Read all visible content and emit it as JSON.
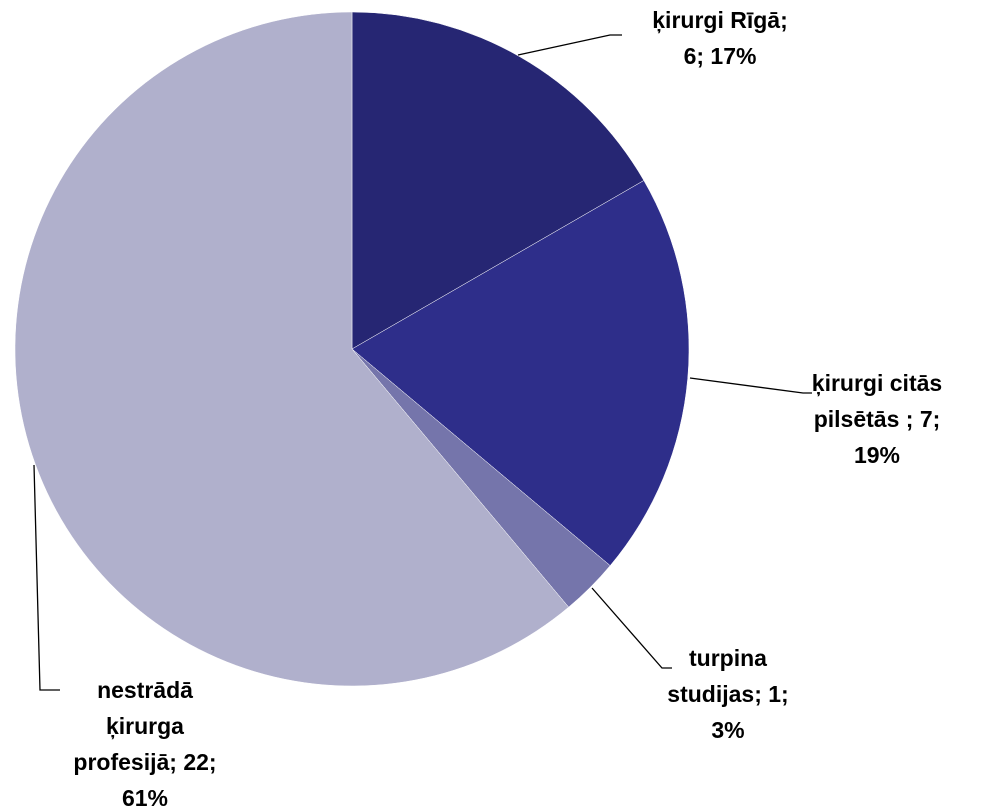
{
  "chart_data": {
    "type": "pie",
    "values": [
      6,
      7,
      1,
      22
    ],
    "value_labels": [
      [
        "ķirurgi Rīgā;",
        "6; 17%"
      ],
      [
        "ķirurgi citās",
        "pilsētās ; 7;",
        "19%"
      ],
      [
        "turpina",
        "studijas; 1;",
        "3%"
      ],
      [
        "nestrādā",
        "ķirurga",
        "profesijā; 22;",
        "61%"
      ]
    ],
    "colors": [
      "#262673",
      "#2e2e8a",
      "#7575ab",
      "#b0b0cc"
    ]
  }
}
